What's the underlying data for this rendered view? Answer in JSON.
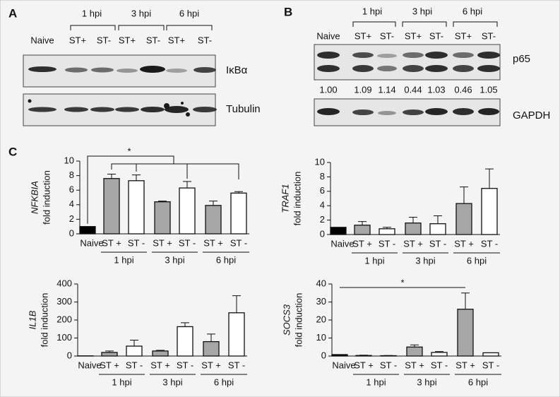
{
  "panel_a": {
    "letter": "A",
    "groups": [
      "1 hpi",
      "3 hpi",
      "6 hpi"
    ],
    "lanes": [
      "Naive",
      "ST+",
      "ST-",
      "ST+",
      "ST-",
      "ST+",
      "ST-"
    ],
    "blots": [
      "IκBα",
      "Tubulin"
    ]
  },
  "panel_b": {
    "letter": "B",
    "groups": [
      "1 hpi",
      "3 hpi",
      "6 hpi"
    ],
    "lanes": [
      "Naive",
      "ST+",
      "ST-",
      "ST+",
      "ST-",
      "ST+",
      "ST-"
    ],
    "blots": [
      "p65",
      "GAPDH"
    ],
    "quantification": [
      "1.00",
      "1.09",
      "1.14",
      "0.44",
      "1.03",
      "0.46",
      "1.05"
    ]
  },
  "panel_c": {
    "letter": "C"
  },
  "chart_data": [
    {
      "type": "bar",
      "gene": "NFKBIA",
      "ylabel": "fold induction",
      "categories": [
        "Naive",
        "ST +",
        "ST -",
        "ST +",
        "ST -",
        "ST +",
        "ST -"
      ],
      "groups": [
        "1 hpi",
        "3 hpi",
        "6 hpi"
      ],
      "values": [
        1,
        7.6,
        7.3,
        4.4,
        6.3,
        3.9,
        5.6
      ],
      "errors": [
        0,
        0.6,
        0.8,
        0.1,
        0.9,
        0.6,
        0.2
      ],
      "colors": [
        "#000000",
        "#a6a6a6",
        "#ffffff",
        "#a6a6a6",
        "#ffffff",
        "#a6a6a6",
        "#ffffff"
      ],
      "ylim": [
        0,
        10
      ],
      "yticks": [
        0,
        2,
        4,
        6,
        8,
        10
      ],
      "annotation": "*"
    },
    {
      "type": "bar",
      "gene": "TRAF1",
      "ylabel": "fold induction",
      "categories": [
        "Naive",
        "ST +",
        "ST -",
        "ST +",
        "ST -",
        "ST +",
        "ST -"
      ],
      "groups": [
        "1 hpi",
        "3 hpi",
        "6 hpi"
      ],
      "values": [
        1,
        1.3,
        0.8,
        1.6,
        1.5,
        4.3,
        6.4
      ],
      "errors": [
        0,
        0.5,
        0.2,
        0.8,
        1.1,
        2.3,
        2.7
      ],
      "colors": [
        "#000000",
        "#a6a6a6",
        "#ffffff",
        "#a6a6a6",
        "#ffffff",
        "#a6a6a6",
        "#ffffff"
      ],
      "ylim": [
        0,
        10
      ],
      "yticks": [
        0,
        2,
        4,
        6,
        8,
        10
      ]
    },
    {
      "type": "bar",
      "gene": "IL1B",
      "ylabel": "fold induction",
      "categories": [
        "Naive",
        "ST +",
        "ST -",
        "ST +",
        "ST -",
        "ST +",
        "ST -"
      ],
      "groups": [
        "1 hpi",
        "3 hpi",
        "6 hpi"
      ],
      "values": [
        1,
        20,
        55,
        28,
        163,
        80,
        240
      ],
      "errors": [
        0,
        8,
        33,
        4,
        22,
        42,
        95
      ],
      "colors": [
        "#000000",
        "#a6a6a6",
        "#ffffff",
        "#a6a6a6",
        "#ffffff",
        "#a6a6a6",
        "#ffffff"
      ],
      "ylim": [
        0,
        400
      ],
      "yticks": [
        0,
        100,
        200,
        300,
        400
      ]
    },
    {
      "type": "bar",
      "gene": "SOCS3",
      "ylabel": "fold induction",
      "categories": [
        "Naive",
        "ST +",
        "ST -",
        "ST +",
        "ST -",
        "ST +",
        "ST -"
      ],
      "groups": [
        "1 hpi",
        "3 hpi",
        "6 hpi"
      ],
      "values": [
        0.8,
        0.3,
        0.2,
        5,
        2,
        26,
        1.8
      ],
      "errors": [
        0,
        0.2,
        0.1,
        1.2,
        0.5,
        9,
        0
      ],
      "colors": [
        "#000000",
        "#a6a6a6",
        "#ffffff",
        "#a6a6a6",
        "#ffffff",
        "#a6a6a6",
        "#ffffff"
      ],
      "ylim": [
        0,
        40
      ],
      "yticks": [
        0,
        10,
        20,
        30,
        40
      ],
      "annotation": "*"
    }
  ]
}
